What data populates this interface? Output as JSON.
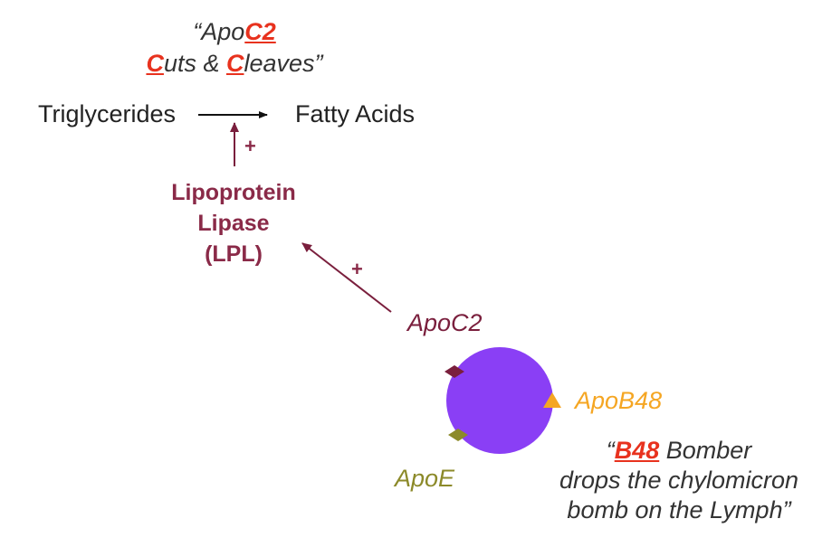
{
  "quote_top": {
    "line1_pre": "“Apo",
    "line1_red": "C2",
    "line2_red1": "C",
    "line2_mid": "uts & ",
    "line2_red2": "C",
    "line2_post": "leaves”"
  },
  "reaction": {
    "substrate": "Triglycerides",
    "product": "Fatty Acids"
  },
  "enzyme": {
    "line1": "Lipoprotein",
    "line2": "Lipase",
    "line3": "(LPL)"
  },
  "plus_sign": "+",
  "apoproteins": {
    "apoc2": "ApoC2",
    "apob48": "ApoB48",
    "apoe": "ApoE"
  },
  "quote_bottom": {
    "line1_pre": "“",
    "line1_red": "B48",
    "line1_post": " Bomber",
    "line2": "drops the chylomicron",
    "line3": "bomb on the Lymph”"
  },
  "colors": {
    "apoc2": "#7a1f3d",
    "apob48": "#f5a623",
    "apoe": "#8c8a2a",
    "chylomicron": "#8a3ff5",
    "highlight": "#e8321e",
    "lpl": "#8a2a48"
  }
}
